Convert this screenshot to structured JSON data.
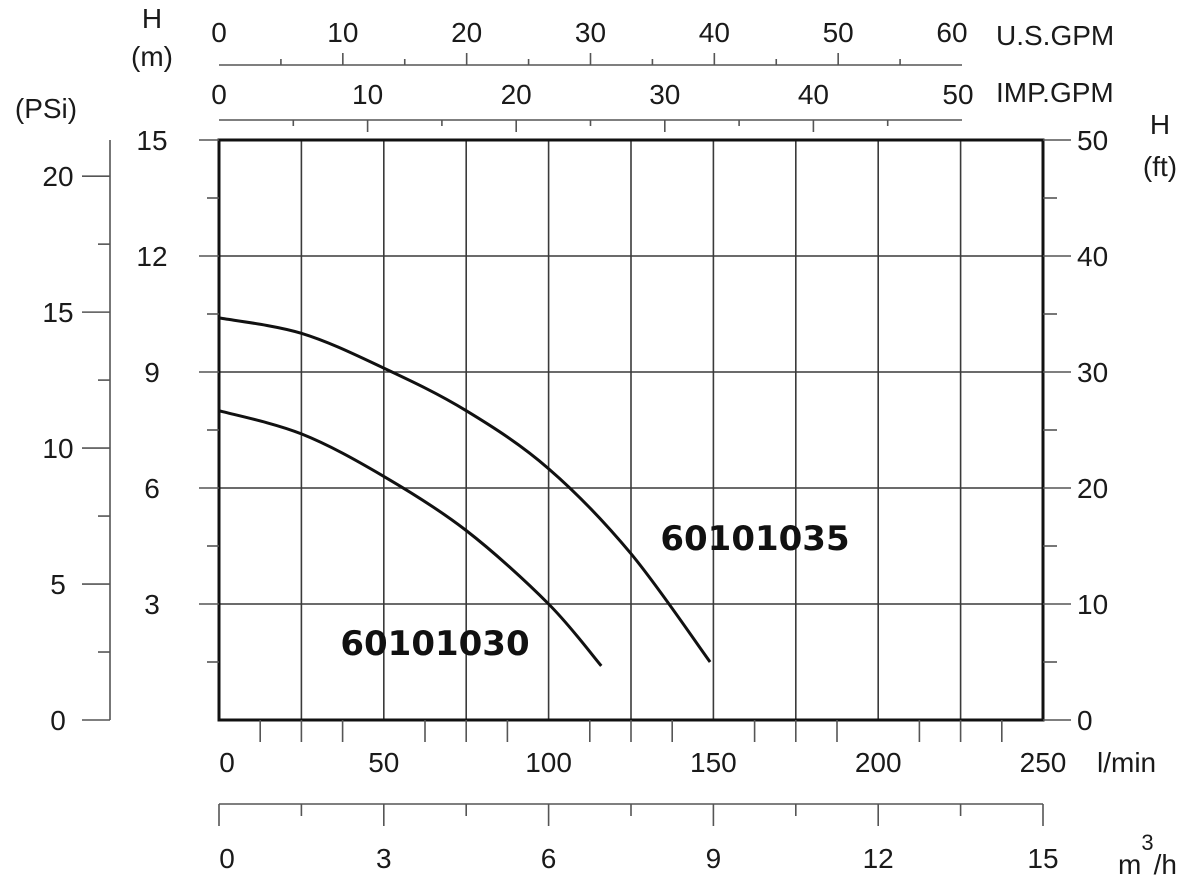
{
  "chart_data": {
    "type": "line",
    "title": "",
    "x_axis_primary": {
      "unit": "l/min",
      "range": [
        0,
        250
      ],
      "ticks": [
        "0",
        "50",
        "100",
        "150",
        "200",
        "250"
      ]
    },
    "x_axis_m3h": {
      "unit": "m³/h",
      "unit_base": "m",
      "unit_sup": "3",
      "unit_tail": "/h",
      "range": [
        0,
        15
      ],
      "ticks": [
        "0",
        "3",
        "6",
        "9",
        "12",
        "15"
      ]
    },
    "x_axis_us_gpm": {
      "unit": "U.S.GPM",
      "range": [
        0,
        60
      ],
      "ticks": [
        "0",
        "10",
        "20",
        "30",
        "40",
        "50",
        "60"
      ]
    },
    "x_axis_imp_gpm": {
      "unit": "IMP.GPM",
      "range": [
        0,
        50
      ],
      "ticks": [
        "0",
        "10",
        "20",
        "30",
        "40",
        "50"
      ]
    },
    "y_axis_m": {
      "unit_line1": "H",
      "unit_line2": "(m)",
      "range": [
        0,
        15
      ],
      "ticks": [
        "3",
        "6",
        "9",
        "12",
        "15"
      ]
    },
    "y_axis_psi": {
      "unit": "(PSi)",
      "range": [
        0,
        21.33
      ],
      "ticks": [
        "0",
        "5",
        "10",
        "15",
        "20"
      ]
    },
    "y_axis_ft": {
      "unit_line1": "H",
      "unit_line2": "(ft)",
      "range": [
        0,
        50
      ],
      "ticks": [
        "0",
        "10",
        "20",
        "30",
        "40",
        "50"
      ]
    },
    "series": [
      {
        "name": "60101035",
        "x": [
          0,
          25,
          50,
          75,
          100,
          125,
          149
        ],
        "y": [
          10.4,
          10.0,
          9.1,
          8.0,
          6.5,
          4.3,
          1.5
        ]
      },
      {
        "name": "60101030",
        "x": [
          0,
          25,
          50,
          75,
          100,
          116
        ],
        "y": [
          8.0,
          7.4,
          6.3,
          4.9,
          3.0,
          1.4
        ]
      }
    ],
    "grid": true
  }
}
